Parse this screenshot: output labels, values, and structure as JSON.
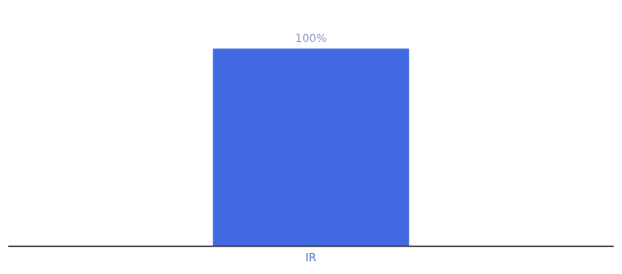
{
  "chart_data": {
    "type": "bar",
    "categories": [
      "IR"
    ],
    "values": [
      100
    ],
    "value_labels": [
      "100%"
    ],
    "data_labels": true,
    "color": "#4169E1",
    "ylim": [
      0,
      120
    ],
    "grid": false,
    "tick_labels": "x"
  }
}
